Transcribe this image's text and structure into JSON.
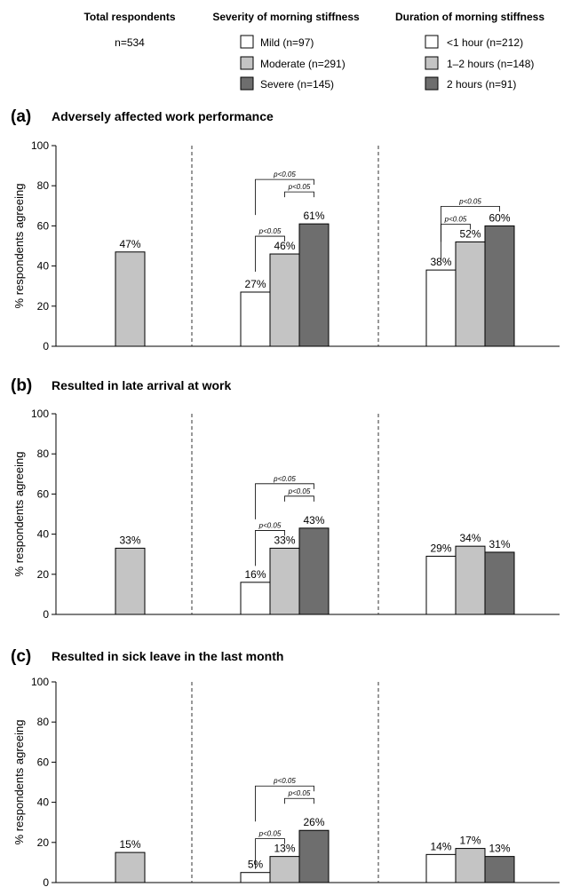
{
  "header": {
    "col1_title": "Total respondents",
    "col1_value": "n=534",
    "col2_title": "Severity of morning stiffness",
    "col3_title": "Duration of morning stiffness"
  },
  "legend": {
    "severity": [
      {
        "label": "Mild (n=97)",
        "color": "#ffffff"
      },
      {
        "label": "Moderate (n=291)",
        "color": "#c4c4c4"
      },
      {
        "label": "Severe (n=145)",
        "color": "#6e6e6e"
      }
    ],
    "duration": [
      {
        "label": "<1 hour (n=212)",
        "color": "#ffffff"
      },
      {
        "label": "1–2 hours (n=148)",
        "color": "#c4c4c4"
      },
      {
        "label": "2 hours (n=91)",
        "color": "#6e6e6e"
      }
    ]
  },
  "chart_data": [
    {
      "type": "bar",
      "letter": "(a)",
      "title": "Adversely affected work performance",
      "ylabel": "% respondents agreeing",
      "ylim": [
        0,
        100
      ],
      "yticks": [
        "0",
        "20",
        "40",
        "60",
        "80",
        "100"
      ],
      "groups": {
        "total": {
          "values": [
            47
          ],
          "labels": [
            "47%"
          ]
        },
        "severity": {
          "values": [
            27,
            46,
            61
          ],
          "labels": [
            "27%",
            "46%",
            "61%"
          ]
        },
        "duration": {
          "values": [
            38,
            52,
            60
          ],
          "labels": [
            "38%",
            "52%",
            "60%"
          ]
        }
      },
      "significance": [
        {
          "group": "severity",
          "from": 0,
          "to": 2,
          "label": "p<0.05"
        },
        {
          "group": "severity",
          "from": 1,
          "to": 2,
          "label": "p<0.05"
        },
        {
          "group": "severity",
          "from": 0,
          "to": 1,
          "label": "p<0.05"
        },
        {
          "group": "duration",
          "from": 0,
          "to": 2,
          "label": "p<0.05"
        },
        {
          "group": "duration",
          "from": 0,
          "to": 1,
          "label": "p<0.05"
        }
      ]
    },
    {
      "type": "bar",
      "letter": "(b)",
      "title": "Resulted in late arrival at work",
      "ylabel": "% respondents agreeing",
      "ylim": [
        0,
        100
      ],
      "yticks": [
        "0",
        "20",
        "40",
        "60",
        "80",
        "100"
      ],
      "groups": {
        "total": {
          "values": [
            33
          ],
          "labels": [
            "33%"
          ]
        },
        "severity": {
          "values": [
            16,
            33,
            43
          ],
          "labels": [
            "16%",
            "33%",
            "43%"
          ]
        },
        "duration": {
          "values": [
            29,
            34,
            31
          ],
          "labels": [
            "29%",
            "34%",
            "31%"
          ]
        }
      },
      "significance": [
        {
          "group": "severity",
          "from": 0,
          "to": 2,
          "label": "p<0.05"
        },
        {
          "group": "severity",
          "from": 1,
          "to": 2,
          "label": "p<0.05"
        },
        {
          "group": "severity",
          "from": 0,
          "to": 1,
          "label": "p<0.05"
        }
      ]
    },
    {
      "type": "bar",
      "letter": "(c)",
      "title": "Resulted in sick leave in the last month",
      "ylabel": "% respondents agreeing",
      "ylim": [
        0,
        100
      ],
      "yticks": [
        "0",
        "20",
        "40",
        "60",
        "80",
        "100"
      ],
      "groups": {
        "total": {
          "values": [
            15
          ],
          "labels": [
            "15%"
          ]
        },
        "severity": {
          "values": [
            5,
            13,
            26
          ],
          "labels": [
            "5%",
            "13%",
            "26%"
          ]
        },
        "duration": {
          "values": [
            14,
            17,
            13
          ],
          "labels": [
            "14%",
            "17%",
            "13%"
          ]
        }
      },
      "significance": [
        {
          "group": "severity",
          "from": 0,
          "to": 2,
          "label": "p<0.05"
        },
        {
          "group": "severity",
          "from": 1,
          "to": 2,
          "label": "p<0.05"
        },
        {
          "group": "severity",
          "from": 0,
          "to": 1,
          "label": "p<0.05"
        }
      ]
    }
  ]
}
